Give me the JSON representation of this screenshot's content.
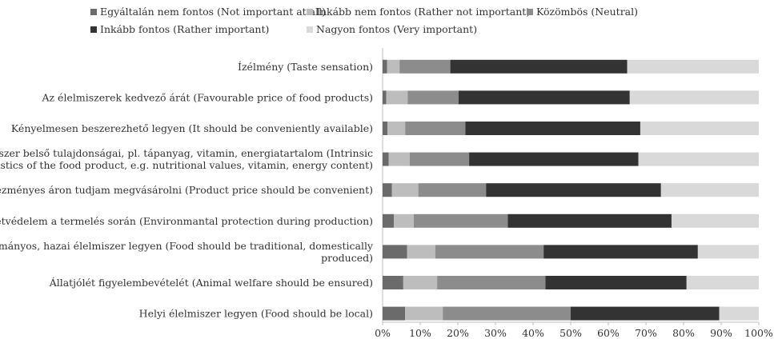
{
  "chart_data": {
    "type": "bar",
    "orientation": "horizontal",
    "stacked": "percent",
    "legend_position": "top",
    "grid": false,
    "xlim": [
      0,
      100
    ],
    "x_ticks": [
      "0%",
      "10%",
      "20%",
      "30%",
      "40%",
      "50%",
      "60%",
      "70%",
      "80%",
      "90%",
      "100%"
    ],
    "categories": [
      "Ízélmény (Taste sensation)",
      "Az élelmiszerek kedvező árát (Favourable price of food products)",
      "Kényelmesen beszerezhető legyen (It should be conveniently available)",
      "Az élelmiszer belső tulajdonságai, pl. tápanyag, vitamin, energiatartalom (Intrinsic characteristics of the food product, e.g. nutritional values, vitamin, energy content)",
      "Kedvezményes áron tudjam megvásárolni (Product price should be convenient)",
      "Környezetvédelem a termelés során (Environmantal protection during production)",
      "Hagyományos, hazai élelmiszer legyen (Food should be traditional, domestically produced)",
      "Állatjólét figyelembevételét (Animal welfare should be ensured)",
      "Helyi élelmiszer legyen (Food should be local)"
    ],
    "category_lines": [
      [
        "Ízélmény (Taste sensation)"
      ],
      [
        "Az élelmiszerek kedvező árát (Favourable price of food products)"
      ],
      [
        "Kényelmesen beszerezhető legyen (It should be conveniently available)"
      ],
      [
        "Az élelmiszer belső tulajdonságai, pl. tápanyag, vitamin, energiatartalom (Intrinsic",
        "characteristics of the food product, e.g. nutritional values, vitamin, energy content)"
      ],
      [
        "Kedvezményes áron tudjam megvásárolni (Product price should be convenient)"
      ],
      [
        "Környezetvédelem a termelés során (Environmantal protection during production)"
      ],
      [
        "Hagyományos, hazai élelmiszer legyen (Food should be traditional, domestically",
        "produced)"
      ],
      [
        "Állatjólét figyelembevételét (Animal welfare should be ensured)"
      ],
      [
        "Helyi élelmiszer legyen (Food should be local)"
      ]
    ],
    "series": [
      {
        "name": "Egyáltalán nem fontos (Not important at all)",
        "color": "#6b6b6b",
        "values": [
          1.2,
          1.0,
          1.3,
          1.6,
          2.5,
          3.0,
          6.5,
          5.5,
          6.0
        ]
      },
      {
        "name": "Inkább nem fontos (Rather not important)",
        "color": "#bdbdbd",
        "values": [
          3.3,
          5.7,
          4.7,
          5.6,
          7.0,
          5.3,
          7.5,
          9.0,
          10.0
        ]
      },
      {
        "name": "Közömbös (Neutral)",
        "color": "#8c8c8c",
        "values": [
          13.5,
          13.5,
          16.0,
          15.8,
          18.0,
          25.0,
          28.8,
          28.8,
          34.0
        ]
      },
      {
        "name": "Inkább fontos (Rather important)",
        "color": "#333333",
        "values": [
          47.0,
          45.5,
          46.5,
          45.0,
          46.5,
          43.5,
          41.0,
          37.5,
          39.5
        ]
      },
      {
        "name": "Nagyon fontos (Very important)",
        "color": "#d9d9d9",
        "values": [
          35.0,
          34.3,
          31.5,
          32.0,
          26.0,
          23.2,
          16.2,
          19.2,
          10.5
        ]
      }
    ]
  }
}
